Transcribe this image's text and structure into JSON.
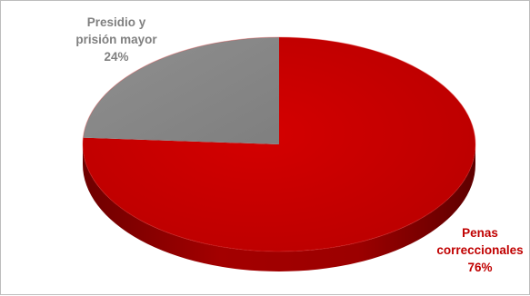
{
  "chart_data": {
    "type": "pie",
    "style": "3d-disc",
    "slices": [
      {
        "name": "Penas correccionales",
        "value": 76,
        "color": "#c00000",
        "label_lines": [
          "Penas",
          "correccionales"
        ],
        "pct_label": "76%"
      },
      {
        "name": "Presidio y prisión mayor",
        "value": 24,
        "color": "#8c8c8c",
        "label_lines": [
          "Presidio y",
          "prisión mayor"
        ],
        "pct_label": "24%"
      }
    ]
  }
}
